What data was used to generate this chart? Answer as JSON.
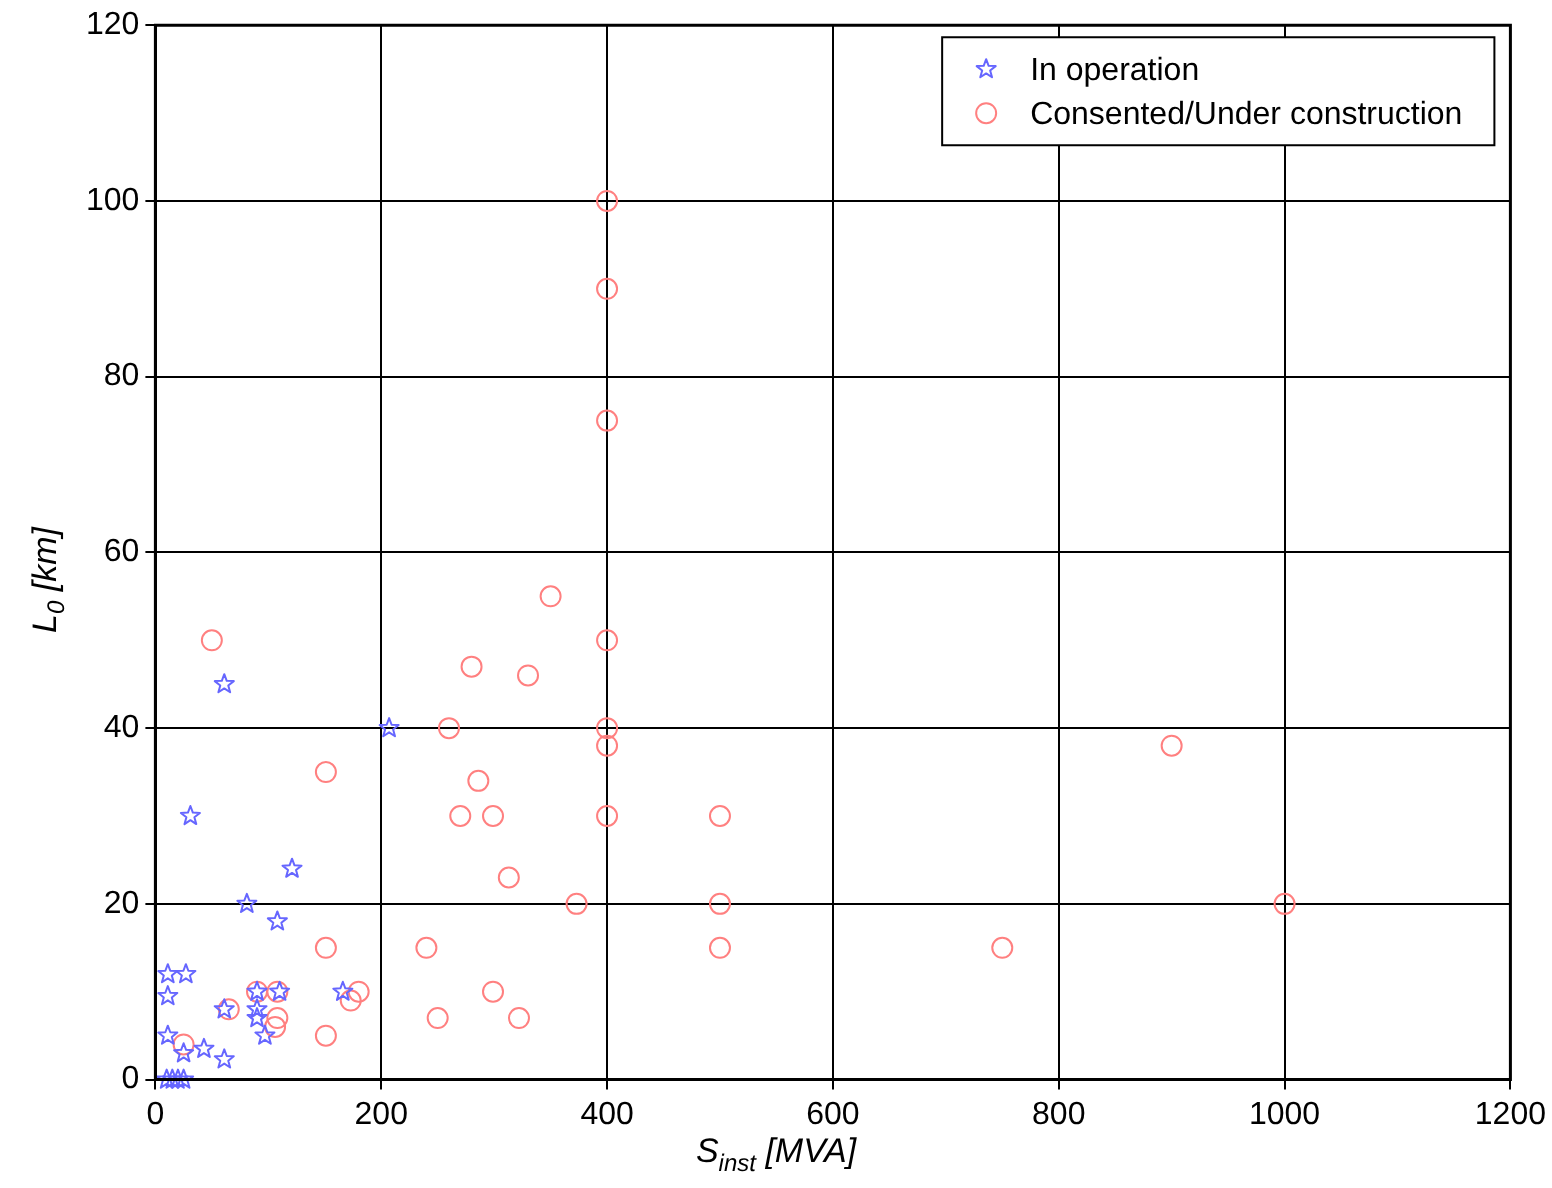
{
  "chart_data": {
    "type": "scatter",
    "xlabel": "S$_{inst}$ [MVA]",
    "ylabel": "L$_{0}$ [km]",
    "xlim": [
      0,
      1200
    ],
    "xticks": [
      0,
      200,
      400,
      600,
      800,
      1000,
      1200
    ],
    "ylim": [
      0,
      120
    ],
    "yticks": [
      0,
      20,
      40,
      60,
      80,
      100,
      120
    ],
    "grid": true,
    "legend": "top right",
    "series": [
      {
        "name": "In operation",
        "color": "#6666ff",
        "marker": "star",
        "x": [
          61,
          31,
          207,
          121,
          81,
          108,
          11,
          27,
          11,
          90,
          110,
          90,
          61,
          90,
          97,
          166,
          11,
          25,
          43,
          61,
          10,
          15,
          20,
          25
        ],
        "values": [
          45,
          30,
          40,
          24,
          20,
          18,
          12,
          12,
          9.5,
          10,
          10,
          8,
          8,
          7,
          5,
          10,
          5,
          3,
          3.5,
          2.3,
          0,
          0,
          0,
          0
        ]
      },
      {
        "name": "Consented/Under construction",
        "color": "#ff8080",
        "marker": "circle",
        "x": [
          50,
          280,
          260,
          151,
          286,
          270,
          299,
          313,
          151,
          240,
          90,
          108,
          65,
          180,
          173,
          108,
          106,
          299,
          250,
          151,
          25,
          350,
          400,
          330,
          400,
          400,
          400,
          500,
          373,
          500,
          500,
          322,
          400,
          400,
          400,
          750,
          1000,
          900
        ],
        "values": [
          50,
          47,
          40,
          35,
          34,
          30,
          30,
          23,
          15,
          15,
          10,
          10,
          8,
          10,
          9,
          7,
          6,
          10,
          7,
          5,
          4,
          55,
          50,
          46,
          40,
          38,
          30,
          30,
          20,
          20,
          15,
          7,
          100,
          90,
          75,
          15,
          20,
          38
        ]
      }
    ]
  }
}
